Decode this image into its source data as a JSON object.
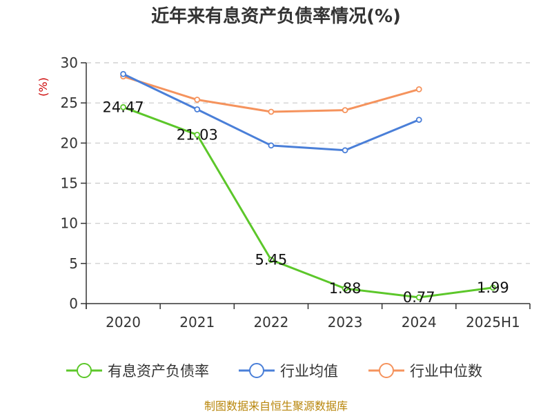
{
  "chart_data": {
    "type": "line",
    "title": "近年来有息资产负债率情况(%)",
    "ylabel": "(%)",
    "categories": [
      "2020",
      "2021",
      "2022",
      "2023",
      "2024",
      "2025H1"
    ],
    "ylim": [
      0,
      30
    ],
    "yticks": [
      0,
      5,
      10,
      15,
      20,
      25,
      30
    ],
    "grid": true,
    "legend_position": "bottom",
    "series": [
      {
        "name": "有息资产负债率",
        "color": "#5cc72a",
        "values": [
          24.47,
          21.03,
          5.45,
          1.88,
          0.77,
          1.99
        ],
        "labels": [
          "24.47",
          "21.03",
          "5.45",
          "1.88",
          "0.77",
          "1.99"
        ]
      },
      {
        "name": "行业均值",
        "color": "#4a7fd8",
        "values": [
          28.6,
          24.2,
          19.7,
          19.1,
          22.9,
          null
        ]
      },
      {
        "name": "行业中位数",
        "color": "#f5935d",
        "values": [
          28.3,
          25.4,
          23.9,
          24.1,
          26.7,
          null
        ]
      }
    ]
  },
  "source": "制图数据来自恒生聚源数据库"
}
